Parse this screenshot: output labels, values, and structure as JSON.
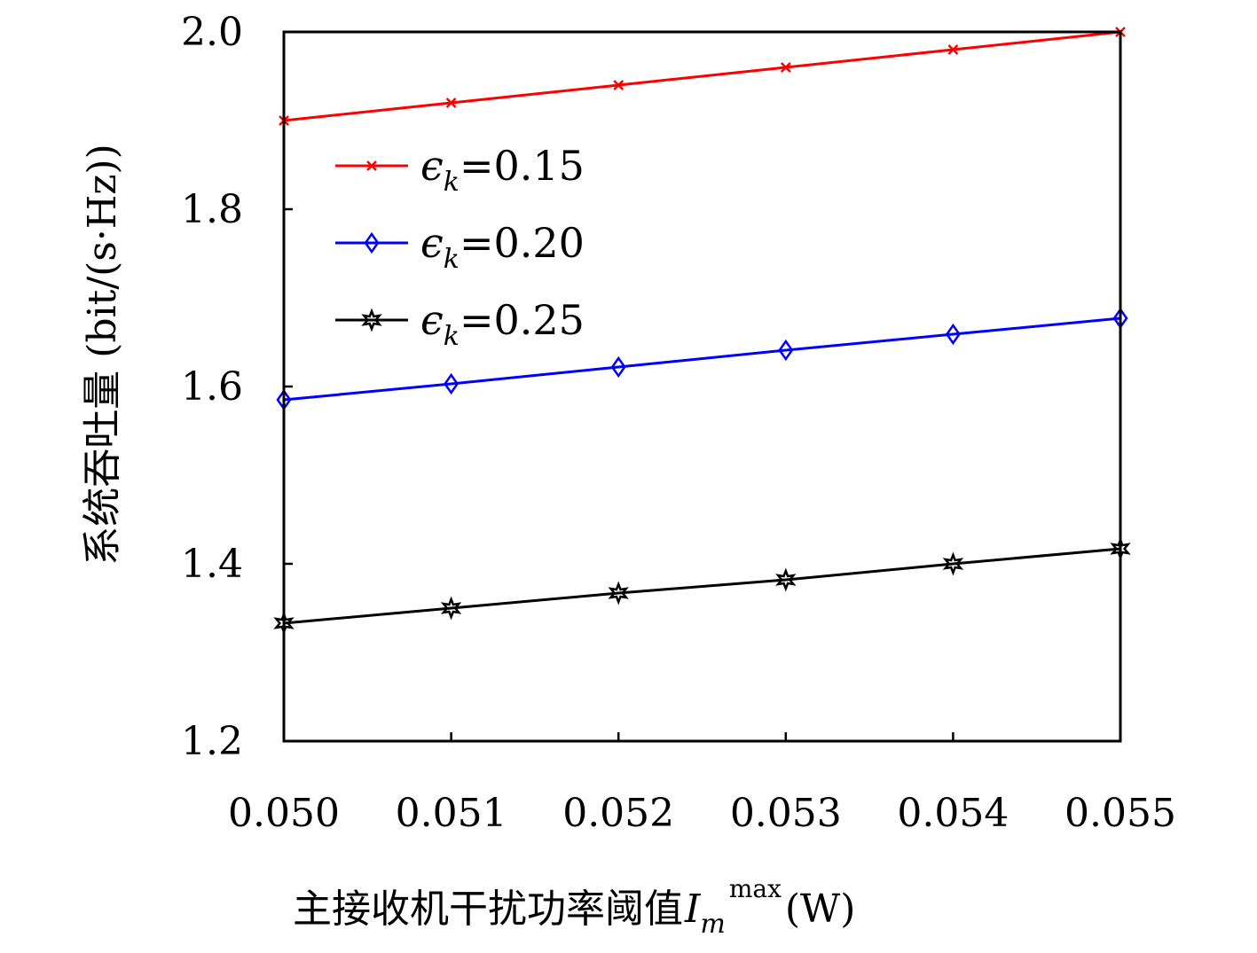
{
  "chart_data": {
    "type": "line",
    "xlabel": "主接收机干扰功率阈值",
    "xlabel_symbol": "I",
    "xlabel_sub": "m",
    "xlabel_sup": "max",
    "xlabel_unit": "(W)",
    "ylabel": "系统吞吐量 (bit/(s·Hz))",
    "x": [
      0.05,
      0.051,
      0.052,
      0.053,
      0.054,
      0.055
    ],
    "x_tick_labels": [
      "0.050",
      "0.051",
      "0.052",
      "0.053",
      "0.054",
      "0.055"
    ],
    "xlim": [
      0.05,
      0.055
    ],
    "ylim": [
      1.2,
      2.0
    ],
    "y_ticks": [
      1.2,
      1.4,
      1.6,
      1.8,
      2.0
    ],
    "y_tick_labels": [
      "1.2",
      "1.4",
      "1.6",
      "1.8",
      "2.0"
    ],
    "grid": false,
    "legend_position": "upper-left",
    "series": [
      {
        "name_symbol": "ϵ",
        "name_sub": "k",
        "name_value": "=0.15",
        "color": "#ff0000",
        "marker": "x",
        "values": [
          1.9,
          1.92,
          1.94,
          1.96,
          1.98,
          2.0
        ]
      },
      {
        "name_symbol": "ϵ",
        "name_sub": "k",
        "name_value": "=0.20",
        "color": "#0000ff",
        "marker": "diamond",
        "values": [
          1.585,
          1.603,
          1.622,
          1.641,
          1.659,
          1.677
        ]
      },
      {
        "name_symbol": "ϵ",
        "name_sub": "k",
        "name_value": "=0.25",
        "color": "#000000",
        "marker": "hexagram",
        "values": [
          1.333,
          1.35,
          1.367,
          1.382,
          1.4,
          1.417
        ]
      }
    ]
  }
}
